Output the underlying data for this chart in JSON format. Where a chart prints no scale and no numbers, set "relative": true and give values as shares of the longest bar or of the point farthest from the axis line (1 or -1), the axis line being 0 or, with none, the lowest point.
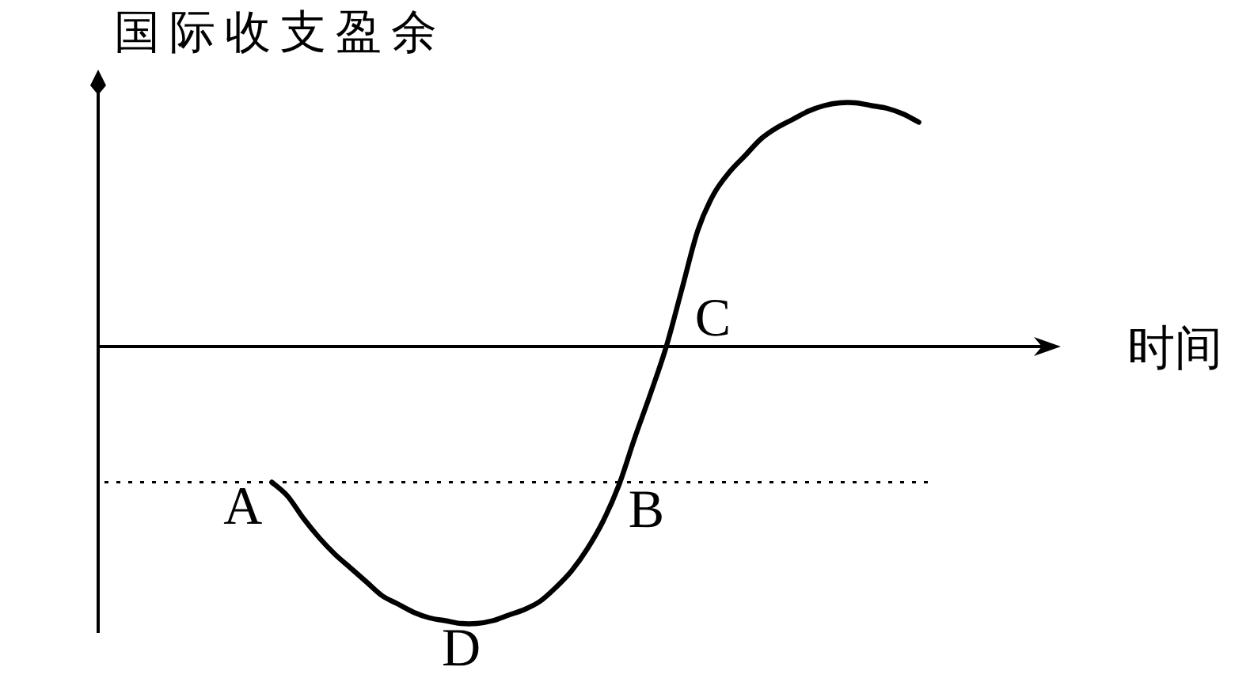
{
  "chart_data": {
    "type": "line",
    "relative": true,
    "ylabel": "国际收支盈余",
    "xlabel": "时间",
    "categories": [
      null,
      null,
      null,
      null,
      null,
      null,
      null,
      null,
      null,
      null,
      null,
      null,
      null,
      null,
      null,
      null,
      null,
      null,
      null,
      null,
      null,
      null,
      null,
      null,
      null,
      null,
      null,
      null,
      null,
      null,
      null,
      null,
      null,
      null,
      null,
      null,
      null,
      null,
      null,
      null,
      null,
      null,
      null,
      null,
      null,
      null,
      null,
      null,
      null,
      null,
      null,
      null,
      null,
      null,
      null,
      null,
      null,
      null,
      null,
      null,
      null,
      null
    ],
    "series": [
      {
        "color": "#000000",
        "values": [
          null,
          null,
          null,
          null,
          null,
          null,
          null,
          null,
          null,
          null,
          null,
          -0.49,
          -0.54,
          -0.62,
          -0.69,
          -0.75,
          -0.8,
          -0.85,
          -0.9,
          -0.93,
          -0.96,
          -0.98,
          -0.99,
          -1,
          -1,
          -0.99,
          -0.97,
          -0.95,
          -0.92,
          -0.87,
          -0.81,
          -0.73,
          -0.63,
          -0.5,
          -0.33,
          -0.17,
          0,
          0.21,
          0.42,
          0.55,
          0.63,
          0.69,
          0.75,
          0.79,
          0.82,
          0.85,
          0.87,
          0.88,
          0.88,
          0.87,
          0.86,
          0.84,
          0.81,
          null,
          null,
          null,
          null,
          null,
          null,
          null,
          null,
          null
        ]
      }
    ],
    "ref_lines": [
      {
        "axis": "y",
        "value": -0.49,
        "line_style": "dotted",
        "color": "#000000"
      }
    ],
    "annotations": [
      "C",
      {
        "text": "A",
        "y": -0.49
      },
      {
        "text": "B",
        "y": -0.5
      },
      {
        "text": "D",
        "y": -1
      }
    ]
  }
}
